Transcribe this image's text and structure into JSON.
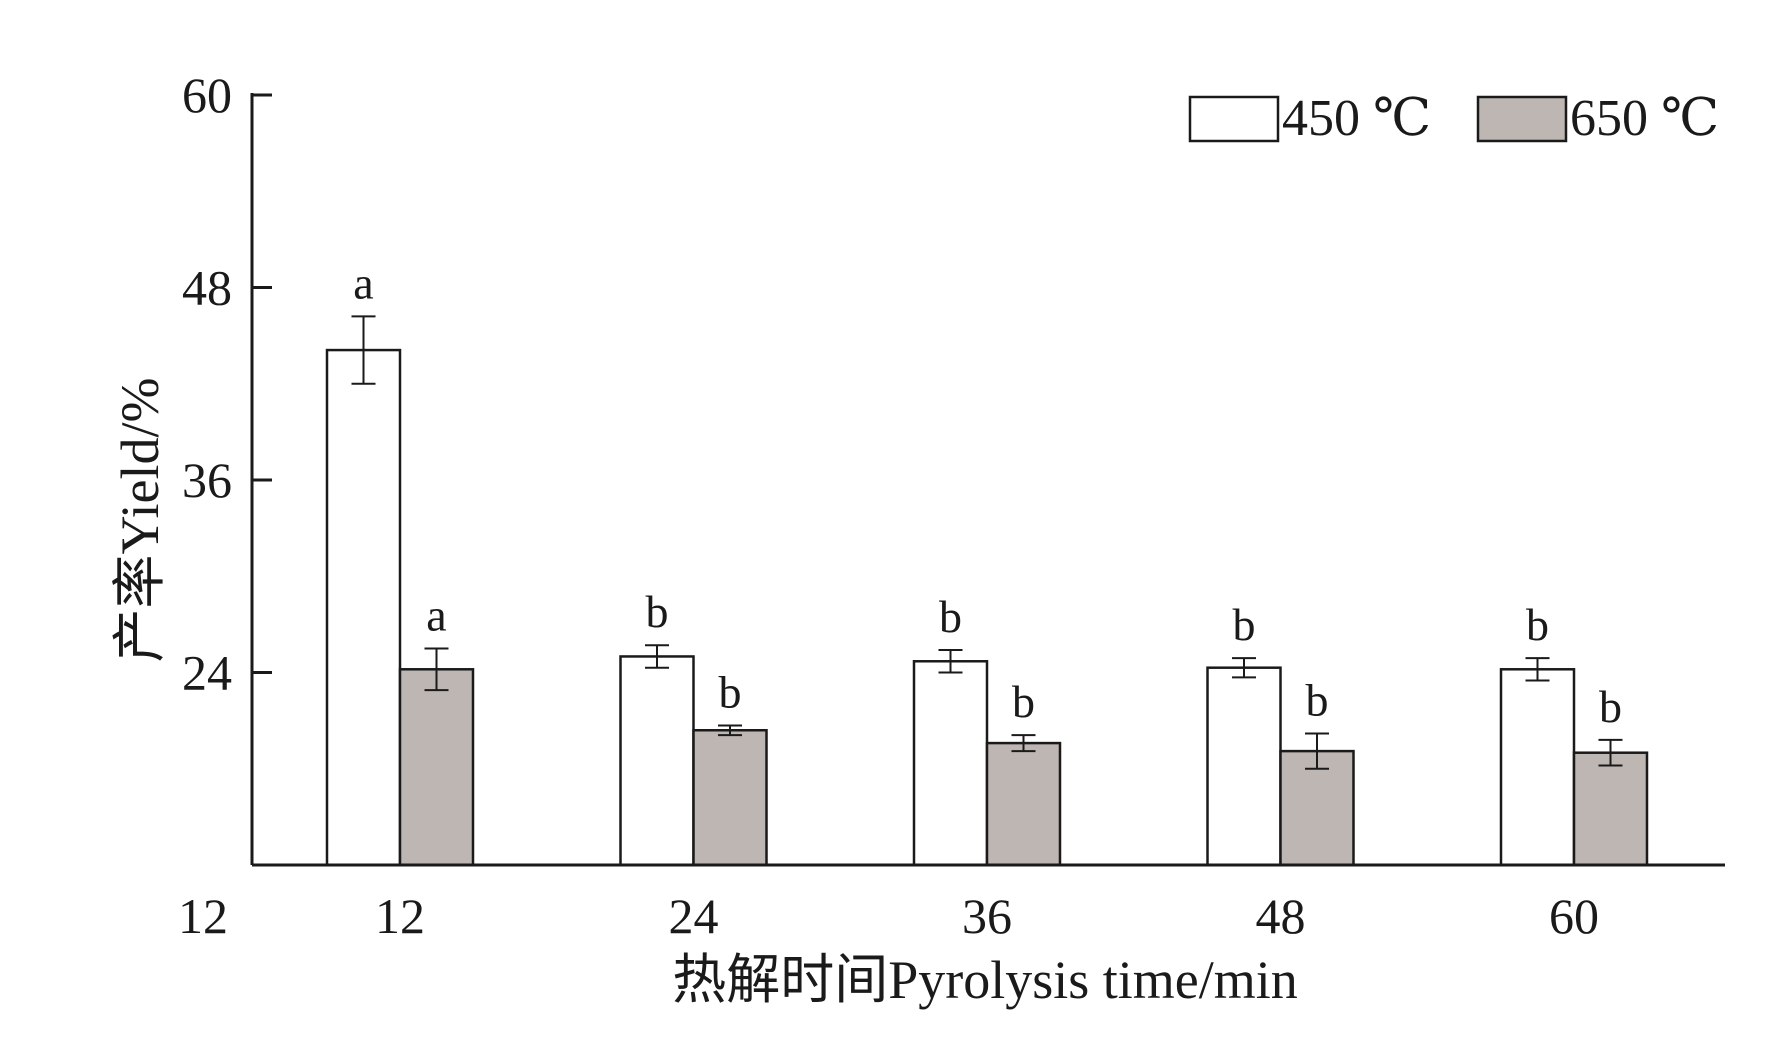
{
  "chart_data": {
    "type": "bar",
    "xlabel": "热解时间Pyrolysis time/min",
    "ylabel": "产率Yield/%",
    "ylim": [
      12,
      60
    ],
    "yticks": [
      60,
      48,
      36,
      24
    ],
    "y_origin_label": "12",
    "categories": [
      "12",
      "24",
      "36",
      "48",
      "60"
    ],
    "grid": false,
    "legend": "top-right",
    "series": [
      {
        "name": "450 ℃",
        "color": "#ffffff",
        "values": [
          44.1,
          25.0,
          24.7,
          24.3,
          24.2
        ],
        "errors": [
          2.1,
          0.7,
          0.7,
          0.6,
          0.7
        ],
        "letters": [
          "a",
          "b",
          "b",
          "b",
          "b"
        ]
      },
      {
        "name": "650 ℃",
        "color": "#bdb6b3",
        "values": [
          24.2,
          20.4,
          19.6,
          19.1,
          19.0
        ],
        "errors": [
          1.3,
          0.3,
          0.5,
          1.1,
          0.8
        ],
        "letters": [
          "a",
          "b",
          "b",
          "b",
          "b"
        ]
      }
    ]
  }
}
